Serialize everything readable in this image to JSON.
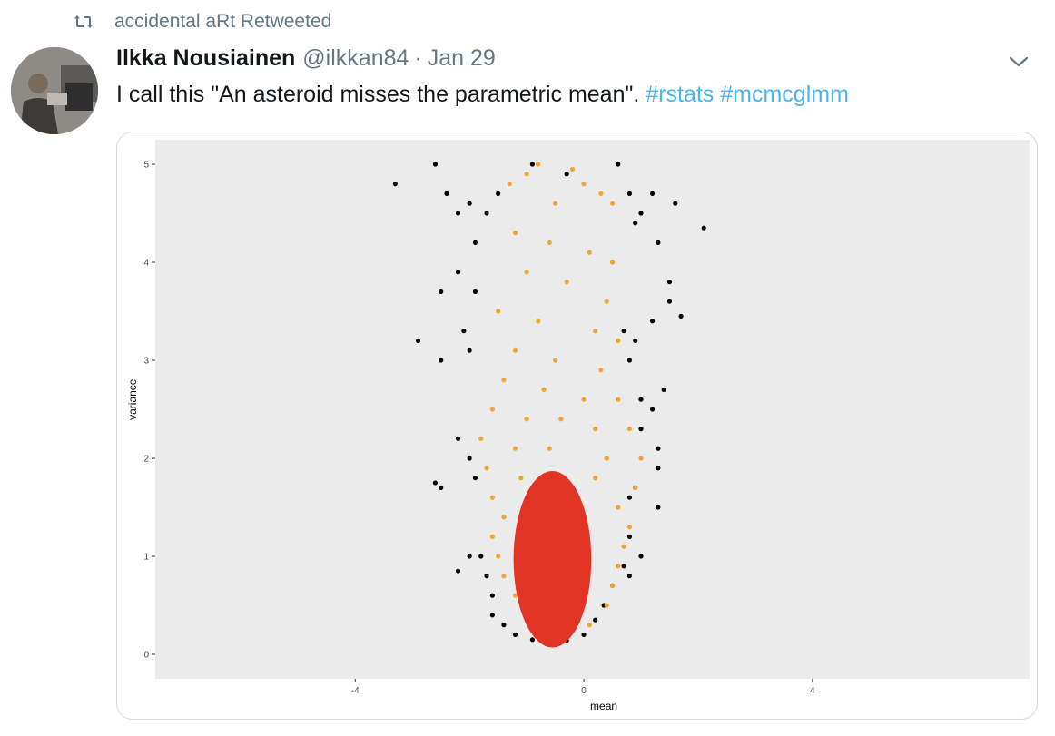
{
  "retweet": {
    "label": "accidental aRt Retweeted",
    "icon": "retweet-icon"
  },
  "tweet": {
    "author_name": "Ilkka Nousiainen",
    "handle": "@ilkkan84",
    "separator": "·",
    "date": "Jan 29",
    "text": "I call this \"An asteroid misses the parametric mean\". ",
    "hashtags": [
      "#rstats",
      "#mcmcglmm"
    ],
    "menu_icon": "chevron-down-icon"
  },
  "colors": {
    "panel_background": "#ebebeb",
    "hashtag": "#4ab3f4",
    "muted_text": "#657786",
    "outer_points": "#000000",
    "middle_points": "#f0a535",
    "core_points": "#e23424"
  },
  "chart_data": {
    "type": "scatter",
    "xlabel": "mean",
    "ylabel": "variance",
    "xlim": [
      -7.5,
      7.8
    ],
    "ylim": [
      -0.25,
      5.25
    ],
    "x_ticks": [
      -4,
      0,
      4
    ],
    "y_ticks": [
      0,
      1,
      2,
      3,
      4,
      5
    ],
    "grid": false,
    "legend": "none",
    "series": [
      {
        "color": "#000000",
        "points": [
          [
            -3.3,
            4.8
          ],
          [
            -2.6,
            5.0
          ],
          [
            -2.4,
            4.7
          ],
          [
            -2.0,
            4.6
          ],
          [
            -1.7,
            4.5
          ],
          [
            -1.5,
            4.7
          ],
          [
            -2.2,
            4.5
          ],
          [
            -1.9,
            4.2
          ],
          [
            -2.5,
            3.7
          ],
          [
            -2.2,
            3.9
          ],
          [
            -1.9,
            3.7
          ],
          [
            -2.1,
            3.3
          ],
          [
            -2.9,
            3.2
          ],
          [
            -2.5,
            3.0
          ],
          [
            -2.0,
            3.1
          ],
          [
            -2.2,
            2.2
          ],
          [
            -2.0,
            2.0
          ],
          [
            -1.9,
            1.8
          ],
          [
            -2.6,
            1.75
          ],
          [
            -2.5,
            1.7
          ],
          [
            -2.2,
            0.85
          ],
          [
            -2.0,
            1.0
          ],
          [
            -1.8,
            1.0
          ],
          [
            -1.7,
            0.8
          ],
          [
            -1.6,
            0.6
          ],
          [
            -1.6,
            0.4
          ],
          [
            -1.4,
            0.3
          ],
          [
            -1.2,
            0.2
          ],
          [
            -0.9,
            0.15
          ],
          [
            -0.6,
            0.12
          ],
          [
            -0.3,
            0.14
          ],
          [
            0.0,
            0.2
          ],
          [
            0.2,
            0.35
          ],
          [
            0.35,
            0.5
          ],
          [
            0.5,
            0.7
          ],
          [
            0.7,
            0.9
          ],
          [
            0.8,
            1.2
          ],
          [
            0.8,
            1.6
          ],
          [
            0.9,
            1.7
          ],
          [
            1.0,
            2.3
          ],
          [
            1.3,
            2.1
          ],
          [
            1.3,
            1.9
          ],
          [
            1.3,
            1.5
          ],
          [
            1.0,
            1.0
          ],
          [
            0.8,
            0.8
          ],
          [
            0.7,
            3.3
          ],
          [
            0.9,
            3.2
          ],
          [
            0.8,
            3.0
          ],
          [
            1.0,
            2.6
          ],
          [
            1.2,
            2.5
          ],
          [
            1.4,
            2.7
          ],
          [
            1.2,
            3.4
          ],
          [
            0.8,
            4.7
          ],
          [
            0.9,
            4.4
          ],
          [
            1.0,
            4.5
          ],
          [
            1.2,
            4.7
          ],
          [
            1.3,
            4.2
          ],
          [
            1.5,
            3.8
          ],
          [
            1.6,
            4.6
          ],
          [
            1.5,
            3.6
          ],
          [
            2.1,
            4.35
          ],
          [
            1.7,
            3.45
          ],
          [
            0.6,
            5.0
          ],
          [
            -0.9,
            5.0
          ],
          [
            -0.3,
            4.9
          ]
        ]
      },
      {
        "color": "#f0a535",
        "points": [
          [
            -1.3,
            4.8
          ],
          [
            -1.0,
            4.9
          ],
          [
            -0.8,
            5.0
          ],
          [
            -0.5,
            4.6
          ],
          [
            -0.2,
            4.95
          ],
          [
            0.0,
            4.8
          ],
          [
            0.3,
            4.7
          ],
          [
            0.5,
            4.6
          ],
          [
            -1.2,
            4.3
          ],
          [
            -0.6,
            4.2
          ],
          [
            0.1,
            4.1
          ],
          [
            0.5,
            4.0
          ],
          [
            -1.0,
            3.9
          ],
          [
            -0.3,
            3.8
          ],
          [
            0.4,
            3.6
          ],
          [
            -1.5,
            3.5
          ],
          [
            -0.8,
            3.4
          ],
          [
            0.2,
            3.3
          ],
          [
            0.6,
            3.2
          ],
          [
            -1.2,
            3.1
          ],
          [
            -0.5,
            3.0
          ],
          [
            0.3,
            2.9
          ],
          [
            -1.4,
            2.8
          ],
          [
            -0.7,
            2.7
          ],
          [
            0.0,
            2.6
          ],
          [
            0.6,
            2.6
          ],
          [
            -1.6,
            2.5
          ],
          [
            -1.0,
            2.4
          ],
          [
            -0.4,
            2.4
          ],
          [
            0.2,
            2.3
          ],
          [
            0.8,
            2.3
          ],
          [
            -1.8,
            2.2
          ],
          [
            -1.2,
            2.1
          ],
          [
            -0.6,
            2.1
          ],
          [
            0.4,
            2.0
          ],
          [
            1.0,
            2.0
          ],
          [
            -1.7,
            1.9
          ],
          [
            -1.1,
            1.8
          ],
          [
            0.2,
            1.8
          ],
          [
            0.9,
            1.7
          ],
          [
            -1.6,
            1.6
          ],
          [
            -1.4,
            1.4
          ],
          [
            0.6,
            1.5
          ],
          [
            0.8,
            1.3
          ],
          [
            -1.6,
            1.2
          ],
          [
            -1.5,
            1.0
          ],
          [
            0.7,
            1.1
          ],
          [
            0.6,
            0.9
          ],
          [
            -1.4,
            0.8
          ],
          [
            -1.2,
            0.6
          ],
          [
            0.5,
            0.7
          ],
          [
            0.4,
            0.5
          ],
          [
            -1.0,
            0.4
          ],
          [
            -0.7,
            0.3
          ],
          [
            0.1,
            0.3
          ],
          [
            -0.3,
            0.25
          ]
        ]
      },
      {
        "color": "#e23424",
        "ellipse": {
          "cx": -0.55,
          "cy": 0.97,
          "rx": 0.68,
          "ry": 0.9
        }
      }
    ]
  }
}
